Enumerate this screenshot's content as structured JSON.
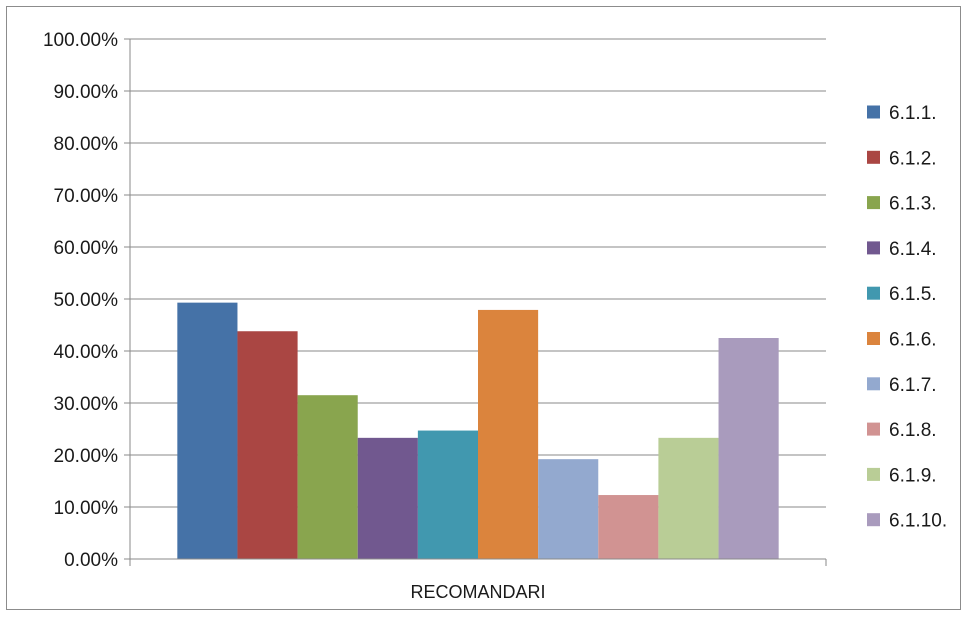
{
  "chart_data": {
    "type": "bar",
    "title": "",
    "xlabel": "",
    "ylabel": "",
    "categories": [
      "RECOMANDARI"
    ],
    "ylim": [
      0,
      1
    ],
    "yticks": [
      0,
      0.1,
      0.2,
      0.3,
      0.4,
      0.5,
      0.6,
      0.7,
      0.8,
      0.9,
      1.0
    ],
    "ytick_labels": [
      "0.00%",
      "10.00%",
      "20.00%",
      "30.00%",
      "40.00%",
      "50.00%",
      "60.00%",
      "70.00%",
      "80.00%",
      "90.00%",
      "100.00%"
    ],
    "grid": true,
    "legend_position": "right",
    "series": [
      {
        "name": "6.1.1.",
        "values": [
          0.493
        ],
        "color": "#4572A7"
      },
      {
        "name": "6.1.2.",
        "values": [
          0.438
        ],
        "color": "#AA4643"
      },
      {
        "name": "6.1.3.",
        "values": [
          0.315
        ],
        "color": "#89A54E"
      },
      {
        "name": "6.1.4.",
        "values": [
          0.233
        ],
        "color": "#71588F"
      },
      {
        "name": "6.1.5.",
        "values": [
          0.247
        ],
        "color": "#4198AF"
      },
      {
        "name": "6.1.6.",
        "values": [
          0.479
        ],
        "color": "#DB843D"
      },
      {
        "name": "6.1.7.",
        "values": [
          0.192
        ],
        "color": "#93A9CF"
      },
      {
        "name": "6.1.8.",
        "values": [
          0.123
        ],
        "color": "#D19392"
      },
      {
        "name": "6.1.9.",
        "values": [
          0.233
        ],
        "color": "#B9CD96"
      },
      {
        "name": "6.1.10.",
        "values": [
          0.425
        ],
        "color": "#A99BBD"
      }
    ]
  }
}
